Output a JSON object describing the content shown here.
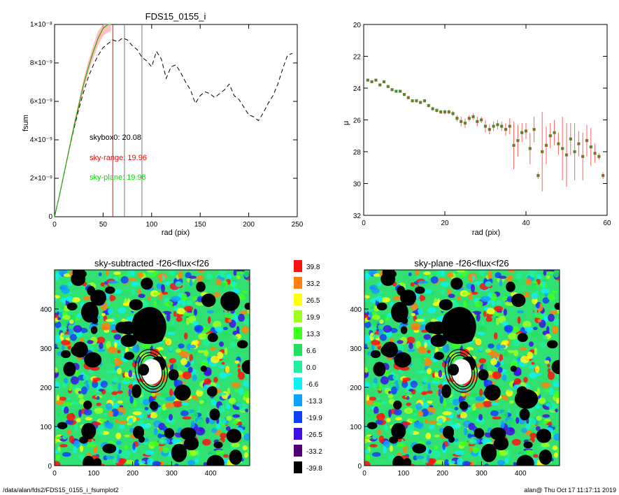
{
  "footer": {
    "left": "/data/alan/fds2/FDS15_0155_i_fsumplot2",
    "right": "alan@  Thu Oct 17 11:17:11 2019"
  },
  "chart_data": [
    {
      "type": "line",
      "title": "FDS15_0155_i",
      "xlabel": "rad (pix)",
      "ylabel": "fsum",
      "xlim": [
        0,
        250
      ],
      "ylim": [
        0,
        1e-08
      ],
      "xticks": [
        "0",
        "50",
        "100",
        "150",
        "200",
        "250"
      ],
      "yticks": [
        "0",
        "2×10⁻⁹",
        "4×10⁻⁹",
        "6×10⁻⁹",
        "8×10⁻⁹",
        "1×10⁻⁸"
      ],
      "annotations": [
        {
          "text": "skybox0: 20.08",
          "color": "#000000"
        },
        {
          "text": "sky-range: 19.96",
          "color": "#ff0000"
        },
        {
          "text": "sky-plane: 19.96",
          "color": "#00e000"
        }
      ],
      "vlines": [
        {
          "x": 60,
          "color": "#ff0000"
        },
        {
          "x": 72,
          "color": "#777777"
        },
        {
          "x": 90,
          "color": "#777777"
        }
      ],
      "series": [
        {
          "color": "#000000",
          "dash": true,
          "x": [
            0,
            5,
            10,
            15,
            20,
            25,
            30,
            35,
            40,
            45,
            50,
            55,
            60,
            65,
            70,
            75,
            80,
            85,
            90,
            95,
            100,
            105,
            110,
            115,
            120,
            125,
            130,
            135,
            140,
            145,
            150,
            155,
            160,
            165,
            170,
            175,
            180,
            185,
            190,
            195,
            200,
            205,
            210,
            215,
            220,
            225,
            230,
            235,
            240,
            245
          ],
          "y": [
            0,
            1.1e-09,
            2.3e-09,
            3.5e-09,
            4.6e-09,
            5.6e-09,
            6.5e-09,
            7.3e-09,
            7.9e-09,
            8.4e-09,
            8.8e-09,
            9e-09,
            9.2e-09,
            9.1e-09,
            9.3e-09,
            9.2e-09,
            8.9e-09,
            8.7e-09,
            8.3e-09,
            8.1e-09,
            7.8e-09,
            8.6e-09,
            8.2e-09,
            7.2e-09,
            7.8e-09,
            7.9e-09,
            7.5e-09,
            7e-09,
            6.6e-09,
            5.9e-09,
            6.3e-09,
            6.5e-09,
            6.4e-09,
            6.2e-09,
            6.4e-09,
            6.6e-09,
            6.9e-09,
            6.3e-09,
            6.1e-09,
            5.7e-09,
            5.3e-09,
            5.2e-09,
            5e-09,
            5.4e-09,
            5.9e-09,
            6.3e-09,
            6.9e-09,
            7.7e-09,
            8.4e-09,
            8.5e-09
          ]
        },
        {
          "color": "#ff0000",
          "x": [
            0,
            5,
            10,
            15,
            20,
            25,
            30,
            35,
            40,
            45,
            50,
            55,
            58
          ],
          "y": [
            0,
            1.1e-09,
            2.3e-09,
            3.5e-09,
            4.7e-09,
            5.8e-09,
            6.9e-09,
            7.8e-09,
            8.6e-09,
            9.3e-09,
            9.8e-09,
            1e-08,
            1e-08
          ]
        },
        {
          "color": "#00c000",
          "x": [
            0,
            5,
            10,
            15,
            20,
            25,
            30,
            35,
            40,
            45,
            50,
            55,
            58
          ],
          "y": [
            0,
            1.1e-09,
            2.3e-09,
            3.5e-09,
            4.7e-09,
            5.8e-09,
            6.9e-09,
            7.8e-09,
            8.6e-09,
            9.3e-09,
            9.8e-09,
            1e-08,
            1e-08
          ]
        }
      ]
    },
    {
      "type": "scatter",
      "xlabel": "rad (pix)",
      "ylabel": "μ",
      "xlim": [
        0,
        60
      ],
      "ylim": [
        32,
        20
      ],
      "xticks": [
        "0",
        "20",
        "40",
        "60"
      ],
      "yticks": [
        "20",
        "22",
        "24",
        "26",
        "28",
        "30",
        "32"
      ],
      "series": [
        {
          "marker": "diamond",
          "color": "#b06020",
          "x": [
            1,
            2,
            3,
            4,
            5,
            6,
            7,
            8,
            9,
            10,
            11,
            12,
            13,
            14,
            15,
            16,
            17,
            18,
            19,
            20,
            21,
            22,
            23,
            24,
            25,
            26,
            27,
            28,
            29,
            30,
            31,
            32,
            33,
            34,
            35,
            36,
            37,
            38,
            39,
            40,
            41,
            42,
            43,
            44,
            45,
            46,
            47,
            48,
            49,
            50,
            51,
            52,
            53,
            54,
            55,
            56,
            57,
            58,
            59
          ],
          "y": [
            23.5,
            23.6,
            23.5,
            23.8,
            23.6,
            23.9,
            24.1,
            24.2,
            24.2,
            24.4,
            24.6,
            24.8,
            24.8,
            24.9,
            24.8,
            25.1,
            25.3,
            25.4,
            25.5,
            25.5,
            25.5,
            25.6,
            25.9,
            26.1,
            26.2,
            25.9,
            25.8,
            26.1,
            26.0,
            26.4,
            26.6,
            26.4,
            26.3,
            26.4,
            26.6,
            26.4,
            27.6,
            27.3,
            26.8,
            26.7,
            27.8,
            26.6,
            29.5,
            28.0,
            27.6,
            27.0,
            26.8,
            27.5,
            27.8,
            28.2,
            27.2,
            28.0,
            27.5,
            28.3,
            27.3,
            27.7,
            28.1,
            28.3,
            29.5
          ],
          "err": [
            0.05,
            0.05,
            0.05,
            0.05,
            0.05,
            0.05,
            0.05,
            0.08,
            0.08,
            0.08,
            0.1,
            0.1,
            0.1,
            0.1,
            0.1,
            0.1,
            0.12,
            0.12,
            0.12,
            0.15,
            0.15,
            0.15,
            0.2,
            0.3,
            0.3,
            0.2,
            0.2,
            0.3,
            0.2,
            0.4,
            0.3,
            0.3,
            0.3,
            0.3,
            0.4,
            0.5,
            1.5,
            1.0,
            0.6,
            0.5,
            1.0,
            0.8,
            0.2,
            2.5,
            1.2,
            0.8,
            0.8,
            0.7,
            2.0,
            2.0,
            1.0,
            1.8,
            0.8,
            1.5,
            1.0,
            1.2,
            0.6,
            0.2,
            0.2
          ]
        }
      ]
    },
    {
      "type": "heatmap",
      "title": "sky-subtracted -f26<flux<f26",
      "xlim": [
        0,
        500
      ],
      "ylim": [
        0,
        500
      ],
      "xticks": [
        "0",
        "100",
        "200",
        "300",
        "400"
      ],
      "yticks": [
        "0",
        "100",
        "200",
        "300",
        "400"
      ],
      "colorbar": [
        "39.8",
        "33.2",
        "26.5",
        "19.9",
        "13.3",
        "6.6",
        "0.0",
        "-6.6",
        "-13.3",
        "-19.9",
        "-26.5",
        "-33.2",
        "-39.8"
      ],
      "colorbar_colors": [
        "#ff1010",
        "#ff8010",
        "#ffff10",
        "#a0ff20",
        "#40ff20",
        "#20e060",
        "#20f0a0",
        "#10f0f0",
        "#10a0ff",
        "#1040ff",
        "#4010e0",
        "#500070",
        "#000000"
      ]
    },
    {
      "type": "heatmap",
      "title": "sky-plane -f26<flux<f26",
      "xlim": [
        0,
        500
      ],
      "ylim": [
        0,
        500
      ],
      "xticks": [
        "0",
        "100",
        "200",
        "300",
        "400"
      ],
      "yticks": [
        "0",
        "100",
        "200",
        "300",
        "400"
      ]
    }
  ]
}
